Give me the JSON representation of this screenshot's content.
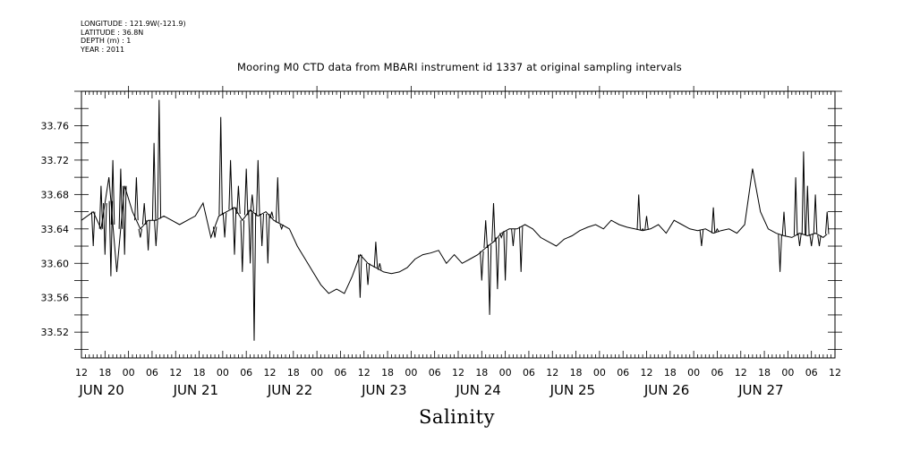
{
  "meta": {
    "longitude": "LONGITUDE : 121.9W(-121.9)",
    "latitude": "LATITUDE : 36.8N",
    "depth": "DEPTH (m) : 1",
    "year": "YEAR : 2011"
  },
  "chart_data": {
    "type": "line",
    "title": "Mooring M0 CTD data from MBARI instrument id 1337 at original sampling intervals",
    "xlabel": "Salinity",
    "ylabel": "",
    "x_unit": "hours since JUN 20 00:00",
    "xlim": [
      -12,
      180
    ],
    "ylim": [
      33.49,
      33.8
    ],
    "yticks": [
      "33.52",
      "33.56",
      "33.60",
      "33.64",
      "33.68",
      "33.72",
      "33.76"
    ],
    "xticks": [
      "12",
      "18",
      "00",
      "06",
      "12",
      "18",
      "00",
      "06",
      "12",
      "18",
      "00",
      "06",
      "12",
      "18",
      "00",
      "06",
      "12",
      "18",
      "00",
      "06",
      "12",
      "18",
      "00",
      "06",
      "12",
      "18",
      "00",
      "06",
      "12",
      "18",
      "00",
      "06",
      "12"
    ],
    "day_labels": [
      "JUN 20",
      "JUN 21",
      "JUN 22",
      "JUN 23",
      "JUN 24",
      "JUN 25",
      "JUN 26",
      "JUN 27"
    ],
    "grid": false,
    "series": [
      {
        "color": "#000000",
        "x": [
          -12,
          -9,
          -7,
          -5,
          -3,
          -1,
          1,
          3,
          5,
          7,
          9,
          11,
          13,
          15,
          17,
          19,
          21,
          23,
          25,
          27,
          29,
          31,
          33,
          35,
          37,
          39,
          41,
          43,
          45,
          47,
          49,
          51,
          53,
          55,
          57,
          59,
          61,
          63,
          65,
          67,
          69,
          71,
          73,
          75,
          77,
          79,
          81,
          83,
          85,
          87,
          89,
          91,
          93,
          95,
          97,
          99,
          101,
          103,
          105,
          107,
          109,
          111,
          113,
          115,
          117,
          119,
          121,
          123,
          125,
          127,
          129,
          131,
          133,
          135,
          137,
          139,
          141,
          143,
          145,
          147,
          149,
          151,
          153,
          155,
          157,
          159,
          161,
          163,
          165,
          167,
          169,
          171,
          173,
          175,
          177,
          178
        ],
        "y": [
          33.65,
          33.66,
          33.64,
          33.7,
          33.59,
          33.69,
          33.66,
          33.64,
          33.65,
          33.65,
          33.655,
          33.65,
          33.645,
          33.65,
          33.655,
          33.67,
          33.63,
          33.655,
          33.66,
          33.665,
          33.65,
          33.662,
          33.655,
          33.66,
          33.65,
          33.645,
          33.64,
          33.62,
          33.605,
          33.59,
          33.575,
          33.565,
          33.57,
          33.565,
          33.585,
          33.61,
          33.6,
          33.595,
          33.59,
          33.588,
          33.59,
          33.595,
          33.605,
          33.61,
          33.612,
          33.615,
          33.6,
          33.61,
          33.6,
          33.605,
          33.61,
          33.618,
          33.625,
          33.635,
          33.64,
          33.64,
          33.645,
          33.64,
          33.63,
          33.625,
          33.62,
          33.628,
          33.632,
          33.638,
          33.642,
          33.645,
          33.64,
          33.65,
          33.645,
          33.642,
          33.64,
          33.638,
          33.64,
          33.645,
          33.635,
          33.65,
          33.645,
          33.64,
          33.638,
          33.64,
          33.635,
          33.638,
          33.64,
          33.635,
          33.645,
          33.71,
          33.66,
          33.64,
          33.635,
          33.632,
          33.63,
          33.635,
          33.632,
          33.635,
          33.63,
          33.634
        ]
      }
    ],
    "spikes": [
      {
        "x": -9,
        "y": 33.62
      },
      {
        "x": -7,
        "y": 33.69
      },
      {
        "x": -6,
        "y": 33.61
      },
      {
        "x": -4.5,
        "y": 33.585
      },
      {
        "x": -4,
        "y": 33.72
      },
      {
        "x": -2,
        "y": 33.71
      },
      {
        "x": -1,
        "y": 33.61
      },
      {
        "x": 2,
        "y": 33.7
      },
      {
        "x": 3,
        "y": 33.63
      },
      {
        "x": 4,
        "y": 33.67
      },
      {
        "x": 5,
        "y": 33.615
      },
      {
        "x": 6.5,
        "y": 33.74
      },
      {
        "x": 7,
        "y": 33.62
      },
      {
        "x": 7.8,
        "y": 33.79
      },
      {
        "x": 22,
        "y": 33.63
      },
      {
        "x": 23.5,
        "y": 33.77
      },
      {
        "x": 24.5,
        "y": 33.63
      },
      {
        "x": 26,
        "y": 33.72
      },
      {
        "x": 27,
        "y": 33.61
      },
      {
        "x": 28,
        "y": 33.69
      },
      {
        "x": 29,
        "y": 33.59
      },
      {
        "x": 30,
        "y": 33.71
      },
      {
        "x": 31,
        "y": 33.6
      },
      {
        "x": 31.5,
        "y": 33.68
      },
      {
        "x": 32,
        "y": 33.51
      },
      {
        "x": 33,
        "y": 33.72
      },
      {
        "x": 34,
        "y": 33.62
      },
      {
        "x": 35.5,
        "y": 33.6
      },
      {
        "x": 36.5,
        "y": 33.66
      },
      {
        "x": 38,
        "y": 33.7
      },
      {
        "x": 39,
        "y": 33.64
      },
      {
        "x": 59,
        "y": 33.56
      },
      {
        "x": 61,
        "y": 33.575
      },
      {
        "x": 63,
        "y": 33.625
      },
      {
        "x": 64,
        "y": 33.6
      },
      {
        "x": 90,
        "y": 33.58
      },
      {
        "x": 91,
        "y": 33.65
      },
      {
        "x": 92,
        "y": 33.54
      },
      {
        "x": 93,
        "y": 33.67
      },
      {
        "x": 94,
        "y": 33.57
      },
      {
        "x": 95,
        "y": 33.63
      },
      {
        "x": 96,
        "y": 33.58
      },
      {
        "x": 98,
        "y": 33.62
      },
      {
        "x": 100,
        "y": 33.59
      },
      {
        "x": 130,
        "y": 33.68
      },
      {
        "x": 131,
        "y": 33.64
      },
      {
        "x": 132,
        "y": 33.655
      },
      {
        "x": 146,
        "y": 33.62
      },
      {
        "x": 149,
        "y": 33.665
      },
      {
        "x": 150,
        "y": 33.64
      },
      {
        "x": 166,
        "y": 33.59
      },
      {
        "x": 167,
        "y": 33.66
      },
      {
        "x": 170,
        "y": 33.7
      },
      {
        "x": 171,
        "y": 33.62
      },
      {
        "x": 172,
        "y": 33.73
      },
      {
        "x": 173,
        "y": 33.69
      },
      {
        "x": 174,
        "y": 33.62
      },
      {
        "x": 175,
        "y": 33.68
      },
      {
        "x": 176,
        "y": 33.62
      },
      {
        "x": 178,
        "y": 33.66
      }
    ]
  }
}
